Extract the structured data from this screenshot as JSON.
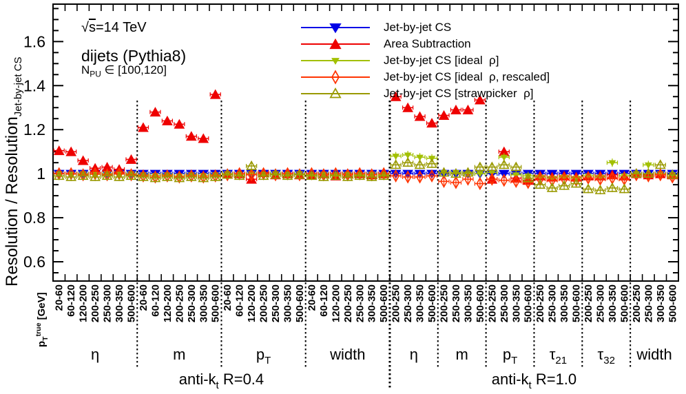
{
  "annotations": {
    "energy": {
      "sqrt_sym": "√",
      "s": "s",
      "rest": "=14 TeV"
    },
    "process": "dijets (Pythia8)",
    "pileup": {
      "main": "N",
      "sub": "PU",
      "rest": " ∈ [100,120]"
    }
  },
  "y_axis": {
    "title_main": "Resolution / Resolution",
    "title_sub": "Jet-by-jet CS",
    "tick_values": [
      0.6,
      0.8,
      1,
      1.2,
      1.4,
      1.6
    ]
  },
  "x_axis": {
    "pt_label": {
      "main": "p",
      "sub": "T",
      "sup": "true",
      "rest": " [GeV]"
    }
  },
  "legend": [
    {
      "label": "Jet-by-jet CS",
      "color": "#0000e6",
      "marker": "tdf"
    },
    {
      "label": "Area Subtraction",
      "color": "#ee0000",
      "marker": "tuf"
    },
    {
      "label": "Jet-by-jet CS [ideal  ρ]",
      "color": "#a2c000",
      "marker": "tds"
    },
    {
      "label": "Jet-by-jet CS [ideal  ρ, rescaled]",
      "color": "#ff3300",
      "marker": "dia"
    },
    {
      "label": "Jet-by-jet CS [strawpicker  ρ]",
      "color": "#999900",
      "marker": "tuo"
    }
  ],
  "chart_data": {
    "type": "scatter",
    "ylabel": "Resolution / Resolution_{Jet-by-jet CS}",
    "xlabel": "p_T^{true} [GeV]",
    "ylim": [
      0.5125,
      1.77
    ],
    "y_ticks": [
      0.6,
      0.8,
      1,
      1.2,
      1.4,
      1.6
    ],
    "sections": [
      {
        "pre": "anti-k",
        "sub": "t",
        "post": " R=0.4",
        "groups": [
          {
            "display": "η",
            "sub": "",
            "bins": [
              "20-60",
              "60-120",
              "120-200",
              "200-250",
              "250-300",
              "300-350",
              "500-600"
            ]
          },
          {
            "display": "m",
            "sub": "",
            "bins": [
              "20-60",
              "60-120",
              "120-200",
              "200-250",
              "250-300",
              "300-350",
              "500-600"
            ]
          },
          {
            "display": "p",
            "sub": "T",
            "bins": [
              "20-60",
              "60-120",
              "120-200",
              "200-250",
              "250-300",
              "300-350",
              "500-600"
            ]
          },
          {
            "display": "width",
            "sub": "",
            "bins": [
              "20-60",
              "60-120",
              "120-200",
              "200-250",
              "250-300",
              "300-350",
              "500-600"
            ]
          }
        ]
      },
      {
        "pre": "anti-k",
        "sub": "t",
        "post": " R=1.0",
        "groups": [
          {
            "display": "η",
            "sub": "",
            "bins": [
              "200-250",
              "250-300",
              "300-350",
              "500-600"
            ]
          },
          {
            "display": "m",
            "sub": "",
            "bins": [
              "200-250",
              "250-300",
              "300-350",
              "500-600"
            ]
          },
          {
            "display": "p",
            "sub": "T",
            "bins": [
              "200-250",
              "250-300",
              "300-350",
              "500-600"
            ]
          },
          {
            "display": "τ",
            "sub": "21",
            "bins": [
              "200-250",
              "250-300",
              "300-350",
              "500-600"
            ]
          },
          {
            "display": "τ",
            "sub": "32",
            "bins": [
              "200-250",
              "250-300",
              "300-350",
              "500-600"
            ]
          },
          {
            "display": "width",
            "sub": "",
            "bins": [
              "200-250",
              "250-300",
              "300-350",
              "500-600"
            ]
          }
        ]
      }
    ],
    "series": [
      {
        "name": "Jet-by-jet CS",
        "marker": "tdf",
        "color": "#0000e6",
        "values": [
          1,
          1,
          1,
          1,
          1,
          1,
          1,
          1,
          1,
          1,
          1,
          1,
          1,
          1,
          1,
          1,
          1,
          1,
          1,
          1,
          1,
          1,
          1,
          1,
          1,
          1,
          1,
          1,
          1,
          1,
          1,
          1,
          1,
          1,
          1,
          1,
          1,
          1,
          1,
          1,
          1,
          1,
          1,
          1,
          1,
          1,
          1,
          1,
          1,
          1,
          1,
          1
        ]
      },
      {
        "name": "Area Subtraction",
        "marker": "tuf",
        "color": "#ee0000",
        "values": [
          1.105,
          1.1,
          1.06,
          1.025,
          1.03,
          1.02,
          1.065,
          1.21,
          1.28,
          1.24,
          1.225,
          1.17,
          1.16,
          1.36,
          1.0,
          1.0,
          0.975,
          1.005,
          0.995,
          1.0,
          0.995,
          0.995,
          1.0,
          0.99,
          1.0,
          1.0,
          0.995,
          1.0,
          1.35,
          1.3,
          1.26,
          1.23,
          1.265,
          1.29,
          1.29,
          1.335,
          0.975,
          1.1,
          0.98,
          0.97,
          0.99,
          0.985,
          0.99,
          0.985,
          0.99,
          0.99,
          0.995,
          0.99,
          1.0,
          0.995,
          1.0,
          0.995
        ]
      },
      {
        "name": "Jet-by-jet CS [ideal ρ]",
        "marker": "tds",
        "color": "#a2c000",
        "values": [
          1.0,
          0.998,
          1.0,
          0.997,
          1.0,
          0.998,
          1.0,
          0.995,
          0.992,
          0.995,
          0.99,
          0.995,
          0.992,
          0.995,
          1.0,
          0.997,
          1.0,
          0.997,
          1.0,
          0.997,
          1.0,
          0.995,
          0.998,
          0.995,
          0.998,
          0.995,
          0.998,
          0.995,
          1.08,
          1.085,
          1.075,
          1.07,
          1.005,
          1.005,
          1.0,
          1.0,
          1.005,
          1.075,
          0.995,
          0.99,
          0.985,
          0.98,
          0.985,
          0.98,
          0.99,
          0.985,
          1.05,
          0.99,
          1.0,
          1.04,
          1.0,
          0.995
        ]
      },
      {
        "name": "Jet-by-jet CS [ideal ρ, rescaled]",
        "marker": "dia",
        "color": "#ff3300",
        "values": [
          1.0,
          1.0,
          0.995,
          1.0,
          0.995,
          1.0,
          0.995,
          0.99,
          0.985,
          0.99,
          0.985,
          0.99,
          0.985,
          0.99,
          0.995,
          1.0,
          0.995,
          1.0,
          0.995,
          1.0,
          0.995,
          1.0,
          0.995,
          1.0,
          0.995,
          1.0,
          0.995,
          1.0,
          0.99,
          0.985,
          0.985,
          0.99,
          0.965,
          0.96,
          0.975,
          0.955,
          0.975,
          0.97,
          0.965,
          0.96,
          0.975,
          0.97,
          0.975,
          0.97,
          0.98,
          0.975,
          0.98,
          0.975,
          0.995,
          0.99,
          0.995,
          0.985
        ]
      },
      {
        "name": "Jet-by-jet CS [strawpicker ρ]",
        "marker": "tuo",
        "color": "#999900",
        "values": [
          0.99,
          0.985,
          0.99,
          0.985,
          0.99,
          0.985,
          0.99,
          0.985,
          0.98,
          0.985,
          0.98,
          0.985,
          0.98,
          0.985,
          0.995,
          0.99,
          1.035,
          0.99,
          0.995,
          0.99,
          0.995,
          0.99,
          0.985,
          0.99,
          0.985,
          0.99,
          0.985,
          0.99,
          1.04,
          1.05,
          1.04,
          1.045,
          1.005,
          1.0,
          1.005,
          1.03,
          1.03,
          1.04,
          1.03,
          0.98,
          0.95,
          0.935,
          0.945,
          0.955,
          0.93,
          0.925,
          0.935,
          0.93,
          1.0,
          1.0,
          1.04,
          0.995
        ]
      }
    ]
  }
}
